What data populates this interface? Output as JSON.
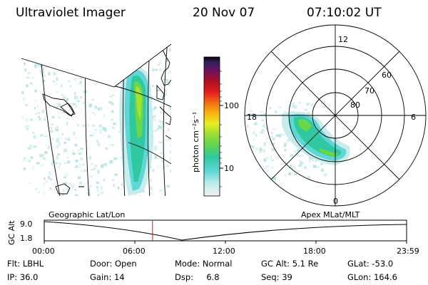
{
  "header": {
    "instrument": "Ultraviolet Imager",
    "date": "20 Nov 07",
    "time": "07:10:02 UT"
  },
  "colorbar": {
    "unit_label": "photon cm⁻²s⁻¹",
    "ticks": [
      "100",
      "10"
    ],
    "scale": "log",
    "colors": [
      "#f0f0f0",
      "#c8ecec",
      "#5fd7d7",
      "#30c8a0",
      "#68d848",
      "#a8e030",
      "#e8f020",
      "#f8b010",
      "#f07010",
      "#e82020",
      "#b01020",
      "#701060",
      "#302060",
      "#100010"
    ]
  },
  "polar": {
    "lat_labels": [
      "60",
      "70",
      "80"
    ],
    "mlt_labels": {
      "top": "12",
      "left": "18",
      "right": "6",
      "bottom": "0"
    }
  },
  "map_labels": {
    "left": "Geographic Lat/Lon",
    "right": "Apex MLat/MLT"
  },
  "altitude_plot": {
    "axis_label": "GC Alt",
    "y_ticks": [
      "9.0",
      "1.8"
    ],
    "x_ticks": [
      "00:00",
      "06:00",
      "12:00",
      "18:00",
      "23:59"
    ],
    "current_time_marker": "07:10",
    "marker_color": "#ff0000"
  },
  "status": {
    "filter_label": "Flt:",
    "filter_value": "LBHL",
    "ip_label": "IP:",
    "ip_value": "36.0",
    "door_label": "Door:",
    "door_value": "Open",
    "gain_label": "Gain:",
    "gain_value": "14",
    "mode_label": "Mode:",
    "mode_value": "Normal",
    "dsp_label": "Dsp:",
    "dsp_value": "6.8",
    "gcalt_label": "GC Alt:",
    "gcalt_value": "5.1 Re",
    "seq_label": "Seq:",
    "seq_value": "39",
    "glat_label": "GLat:",
    "glat_value": "-53.0",
    "glon_label": "GLon:",
    "glon_value": "164.6"
  }
}
